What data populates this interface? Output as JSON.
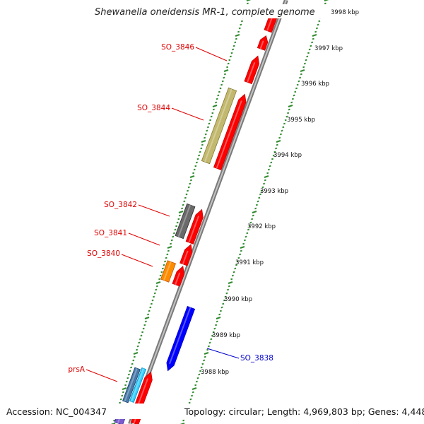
{
  "title": "Shewanella oneidensis MR-1, complete genome",
  "footer": {
    "accession": "Accession: NC_004347",
    "info": "Topology: circular; Length: 4,969,803 bp; Genes: 4,448"
  },
  "colors": {
    "backbone": "#8a8a8a",
    "ticks": "#2e8b2e",
    "forward_cds": "#ff0000",
    "reverse_cds": "#0000ff",
    "label_red": "#e00000",
    "label_blue": "#0000cc"
  },
  "scale_labels": [
    "3998 kbp",
    "3997 kbp",
    "3996 kbp",
    "3995 kbp",
    "3994 kbp",
    "3993 kbp",
    "3992 kbp",
    "3991 kbp",
    "3990 kbp",
    "3989 kbp",
    "3988 kbp"
  ],
  "gene_labels": [
    {
      "id": "so3846",
      "text": "SO_3846",
      "color": "#e00000"
    },
    {
      "id": "so3844",
      "text": "SO_3844",
      "color": "#e00000"
    },
    {
      "id": "so3842",
      "text": "SO_3842",
      "color": "#e00000"
    },
    {
      "id": "so3841",
      "text": "SO_3841",
      "color": "#e00000"
    },
    {
      "id": "so3840",
      "text": "SO_3840",
      "color": "#e00000"
    },
    {
      "id": "so3838",
      "text": "SO_3838",
      "color": "#0000cc"
    },
    {
      "id": "prsA",
      "text": "prsA",
      "color": "#e00000"
    }
  ]
}
